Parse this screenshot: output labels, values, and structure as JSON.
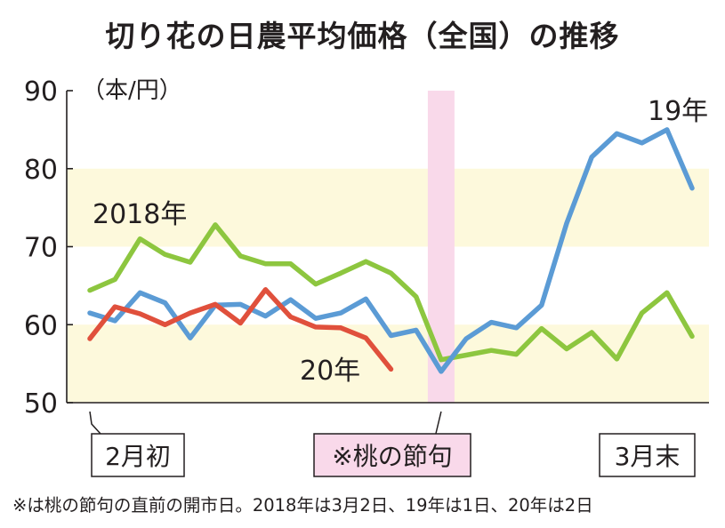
{
  "title": "切り花の日農平均価格（全国）の推移",
  "footnote": "※は桃の節句の直前の開市日。2018年は3月2日、19年は1日、20年は2日",
  "chart_data": {
    "type": "line",
    "title": "切り花の日農平均価格（全国）の推移",
    "ylabel": "（本/円）",
    "ylim": [
      50,
      90
    ],
    "yticks": [
      50,
      60,
      70,
      80,
      90
    ],
    "grid": false,
    "x": [
      1,
      2,
      3,
      4,
      5,
      6,
      7,
      8,
      9,
      10,
      11,
      12,
      13,
      14,
      15,
      16,
      17,
      18,
      19,
      20,
      21,
      22,
      23,
      24,
      25,
      26,
      27,
      28,
      29
    ],
    "bands": [
      [
        50,
        60
      ],
      [
        70,
        80
      ]
    ],
    "markers": [
      {
        "label": "2月初",
        "x": 1
      },
      {
        "label": "※桃の節句",
        "x": 15
      },
      {
        "label": "3月末",
        "x": 29
      }
    ],
    "highlight_x": 15,
    "series": [
      {
        "name": "2018年",
        "color": "#8dc63f",
        "values": [
          64.4,
          65.8,
          71,
          69,
          68,
          72.8,
          68.8,
          67.8,
          67.8,
          65.2,
          66.6,
          68.1,
          66.6,
          63.6,
          55.5,
          56.1,
          56.7,
          56.2,
          59.5,
          56.9,
          59,
          55.6,
          61.5,
          64.1,
          58.5,
          null,
          null,
          null,
          null
        ]
      },
      {
        "name": "19年",
        "color": "#5b9bd5",
        "values": [
          61.5,
          60.5,
          64.1,
          62.8,
          58.3,
          62.5,
          62.6,
          61.1,
          63.2,
          60.8,
          61.5,
          63.3,
          58.6,
          59.3,
          54,
          58.2,
          60.3,
          59.6,
          62.5,
          73,
          81.5,
          84.5,
          83.3,
          85,
          77.5,
          null,
          null,
          null,
          null
        ]
      },
      {
        "name": "20年",
        "color": "#e0503c",
        "values": [
          58.2,
          62.3,
          61.4,
          60,
          61.5,
          62.6,
          60.2,
          64.5,
          61,
          59.7,
          59.6,
          58.3,
          54.3,
          null,
          null,
          null,
          null,
          null,
          null,
          null,
          null,
          null,
          null,
          null,
          null,
          null,
          null,
          null,
          null
        ]
      }
    ]
  }
}
